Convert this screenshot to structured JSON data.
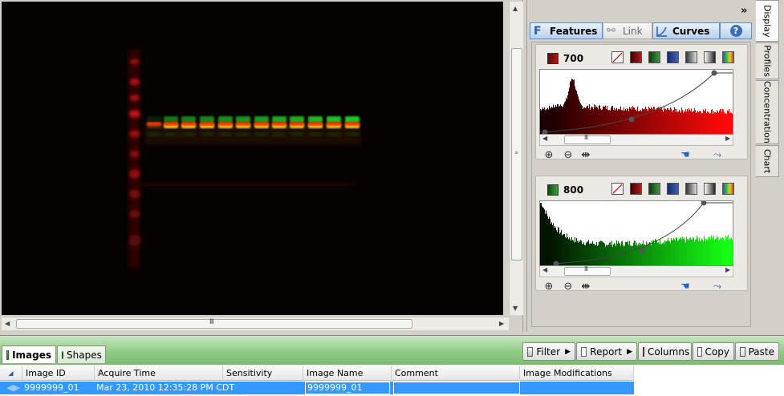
{
  "right_panel": {
    "collapse_glyph": "»",
    "toolbar": [
      {
        "label": "Features",
        "icon": "features-icon",
        "state": "active"
      },
      {
        "label": "Link",
        "icon": "link-icon",
        "state": "disabled"
      },
      {
        "label": "Curves",
        "icon": "curves-icon",
        "state": "active"
      },
      {
        "label": "",
        "icon": "help-icon",
        "state": "active"
      }
    ],
    "channels": [
      {
        "label": "700",
        "color": "#8b0e12"
      },
      {
        "label": "800",
        "color": "#2e8b2e"
      }
    ],
    "palette_icons": [
      "none-icon",
      "dark-red-icon",
      "green-icon",
      "blue-icon",
      "gray-icon",
      "grayscale-icon",
      "rainbow-icon"
    ],
    "tool_icons": [
      "zoom-in-icon",
      "zoom-out-icon",
      "fit-range-icon",
      "auto-adjust-icon",
      "default-curve-icon"
    ]
  },
  "side_tabs": [
    "Display",
    "Profiles",
    "Concentration",
    "Chart"
  ],
  "bottom": {
    "tabs": [
      "Images",
      "Shapes"
    ],
    "actions": [
      "Filter",
      "Report",
      "Columns",
      "Copy",
      "Paste"
    ],
    "columns": [
      "Image ID",
      "Acquire Time",
      "Sensitivity",
      "Image Name",
      "Comment",
      "Image Modifications"
    ],
    "rows": [
      {
        "image_id": "9999999_01",
        "acquire_time": "Mar 23, 2010 12:35:28 PM CDT",
        "sensitivity": "",
        "image_name": "9999999_01",
        "comment": "",
        "image_modifications": ""
      }
    ]
  },
  "colors": {
    "accent": "#3399ff",
    "channel_700": "#ff1a1a",
    "channel_800": "#22dd22"
  }
}
